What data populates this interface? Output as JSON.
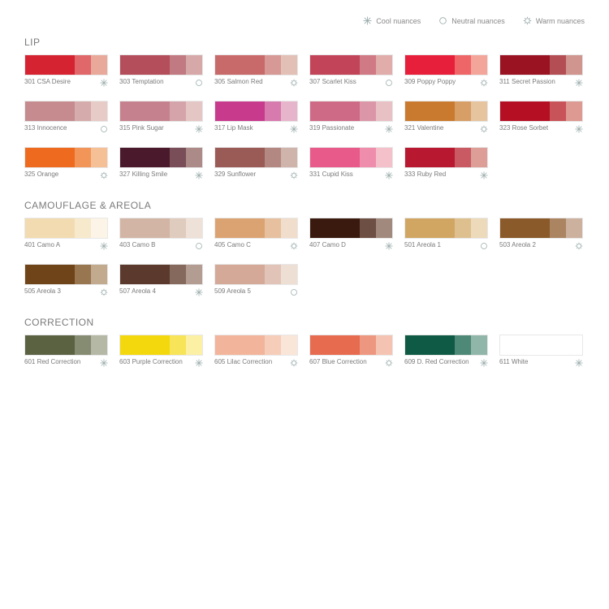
{
  "legend": {
    "cool": "Cool nuances",
    "neutral": "Neutral nuances",
    "warm": "Warm nuances"
  },
  "text_color": "#7a7a7a",
  "background": "#ffffff",
  "label_fontsize": 8,
  "title_fontsize": 12,
  "sections": [
    {
      "title": "LIP",
      "items": [
        {
          "code": "301",
          "name": "CSA Desire",
          "nuance": "cool",
          "colors": [
            "#d62332",
            "#e0676a",
            "#e8a99a"
          ]
        },
        {
          "code": "303",
          "name": "Temptation",
          "nuance": "neutral",
          "colors": [
            "#b34e5a",
            "#c17a82",
            "#d6a9a8"
          ]
        },
        {
          "code": "305",
          "name": "Salmon Red",
          "nuance": "warm",
          "colors": [
            "#c96a6a",
            "#d69995",
            "#e3c0b6"
          ]
        },
        {
          "code": "307",
          "name": "Scarlet Kiss",
          "nuance": "neutral",
          "colors": [
            "#c14458",
            "#d07a85",
            "#e0adab"
          ]
        },
        {
          "code": "309",
          "name": "Poppy Poppy",
          "nuance": "warm",
          "colors": [
            "#e81f3a",
            "#ef6668",
            "#f4a59a"
          ]
        },
        {
          "code": "311",
          "name": "Secret Passion",
          "nuance": "cool",
          "colors": [
            "#9a1323",
            "#b34e54",
            "#cf958e"
          ]
        },
        {
          "code": "313",
          "name": "Innocence",
          "nuance": "neutral",
          "colors": [
            "#c58b8e",
            "#d6abab",
            "#e6cbc6"
          ]
        },
        {
          "code": "315",
          "name": "Pink Sugar",
          "nuance": "cool",
          "colors": [
            "#c5828e",
            "#d5a4aa",
            "#e4c6c4"
          ]
        },
        {
          "code": "317",
          "name": "Lip Mask",
          "nuance": "cool",
          "colors": [
            "#c73a8c",
            "#d77aae",
            "#e7b5cb"
          ]
        },
        {
          "code": "319",
          "name": "Passionate",
          "nuance": "cool",
          "colors": [
            "#cf6a86",
            "#db96a8",
            "#e8c1c5"
          ]
        },
        {
          "code": "321",
          "name": "Valentine",
          "nuance": "warm",
          "colors": [
            "#c97a2e",
            "#d79f65",
            "#e5c49e"
          ]
        },
        {
          "code": "323",
          "name": "Rose Sorbet",
          "nuance": "cool",
          "colors": [
            "#b50f24",
            "#c85358",
            "#dc9a92"
          ]
        },
        {
          "code": "325",
          "name": "Orange",
          "nuance": "warm",
          "colors": [
            "#ee6a1f",
            "#f29559",
            "#f6c096"
          ]
        },
        {
          "code": "327",
          "name": "Killing Smile",
          "nuance": "cool",
          "colors": [
            "#4a1a2c",
            "#7a4e58",
            "#ab8a88"
          ]
        },
        {
          "code": "329",
          "name": "Sunflower",
          "nuance": "warm",
          "colors": [
            "#9a5a55",
            "#b48882",
            "#cfb4ab"
          ]
        },
        {
          "code": "331",
          "name": "Cupid Kiss",
          "nuance": "cool",
          "colors": [
            "#e75a8a",
            "#ee8eac",
            "#f4c1cb"
          ]
        },
        {
          "code": "333",
          "name": "Ruby Red",
          "nuance": "cool",
          "colors": [
            "#b81830",
            "#c95a63",
            "#dc9e97"
          ]
        }
      ]
    },
    {
      "title": "CAMOUFLAGE & AREOLA",
      "items": [
        {
          "code": "401",
          "name": "Camo A",
          "nuance": "cool",
          "colors": [
            "#f2dbb0",
            "#f7e9cc",
            "#fcf5e7"
          ]
        },
        {
          "code": "403",
          "name": "Camo B",
          "nuance": "neutral",
          "colors": [
            "#d3b5a6",
            "#e0cbbf",
            "#eee1d8"
          ]
        },
        {
          "code": "405",
          "name": "Camo C",
          "nuance": "warm",
          "colors": [
            "#dca372",
            "#e7c09f",
            "#f1ddcb"
          ]
        },
        {
          "code": "407",
          "name": "Camo D",
          "nuance": "cool",
          "colors": [
            "#3a1a0e",
            "#6d4f44",
            "#a18a7d"
          ]
        },
        {
          "code": "501",
          "name": "Areola 1",
          "nuance": "neutral",
          "colors": [
            "#d1a663",
            "#dec08f",
            "#ecdabb"
          ]
        },
        {
          "code": "503",
          "name": "Areola 2",
          "nuance": "warm",
          "colors": [
            "#8a5a2a",
            "#ab8562",
            "#ccb29e"
          ]
        },
        {
          "code": "505",
          "name": "Areola 3",
          "nuance": "warm",
          "colors": [
            "#6f4418",
            "#977650",
            "#c1aa8d"
          ]
        },
        {
          "code": "507",
          "name": "Areola 4",
          "nuance": "cool",
          "colors": [
            "#5b3a2d",
            "#86695d",
            "#b39d92"
          ]
        },
        {
          "code": "509",
          "name": "Areola 5",
          "nuance": "neutral",
          "colors": [
            "#d4a998",
            "#e1c4b7",
            "#eedfd5"
          ]
        }
      ]
    },
    {
      "title": "CORRECTION",
      "items": [
        {
          "code": "601",
          "name": "Red Correction",
          "nuance": "cool",
          "colors": [
            "#5a6242",
            "#868c72",
            "#b4b8a4"
          ]
        },
        {
          "code": "603",
          "name": "Purple Correction",
          "nuance": "cool",
          "colors": [
            "#f4d80e",
            "#f7e458",
            "#fbf0a3"
          ]
        },
        {
          "code": "605",
          "name": "Lilac Correction",
          "nuance": "warm",
          "colors": [
            "#f2b49a",
            "#f6cdb9",
            "#fae5d9"
          ]
        },
        {
          "code": "607",
          "name": "Blue Correction",
          "nuance": "warm",
          "colors": [
            "#e76b4f",
            "#ee9780",
            "#f5c3b2"
          ]
        },
        {
          "code": "609",
          "name": "D. Red Correction",
          "nuance": "cool",
          "colors": [
            "#0e5a44",
            "#4e8876",
            "#8fb6a9"
          ]
        },
        {
          "code": "611",
          "name": "White",
          "nuance": "cool",
          "colors": [
            "#ffffff",
            "#ffffff",
            "#ffffff"
          ]
        }
      ]
    }
  ]
}
